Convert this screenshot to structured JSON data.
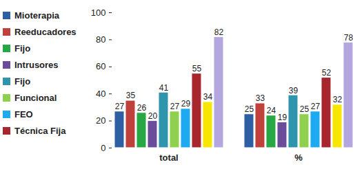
{
  "chart_data": {
    "type": "bar",
    "categories": [
      "total",
      "%"
    ],
    "series": [
      {
        "name": "Mioterapia",
        "color": "#2e5fa3",
        "values": [
          27,
          25
        ]
      },
      {
        "name": "Reeducadores",
        "color": "#c0403c",
        "values": [
          35,
          33
        ]
      },
      {
        "name": "Fijo",
        "color": "#27a844",
        "values": [
          26,
          24
        ]
      },
      {
        "name": "Intrusores",
        "color": "#6b4c9a",
        "values": [
          20,
          19
        ]
      },
      {
        "name": "Fijo",
        "color": "#2f95ad",
        "values": [
          41,
          39
        ]
      },
      {
        "name": "Funcional",
        "color": "#8fd14f",
        "values": [
          27,
          25
        ]
      },
      {
        "name": "FEO",
        "color": "#1eaaf1",
        "values": [
          29,
          27
        ]
      },
      {
        "name": "Técnica Fija",
        "color": "#a8262e",
        "values": [
          55,
          52
        ]
      },
      {
        "name": null,
        "color": "#f6e600",
        "values": [
          34,
          32
        ]
      },
      {
        "name": null,
        "color": "#b4a7e0",
        "values": [
          82,
          78
        ]
      }
    ],
    "ylim": [
      0,
      100
    ],
    "yticks": [
      0,
      20,
      40,
      60,
      80,
      100
    ],
    "grid": false,
    "data_labels": true,
    "legend": "left"
  }
}
